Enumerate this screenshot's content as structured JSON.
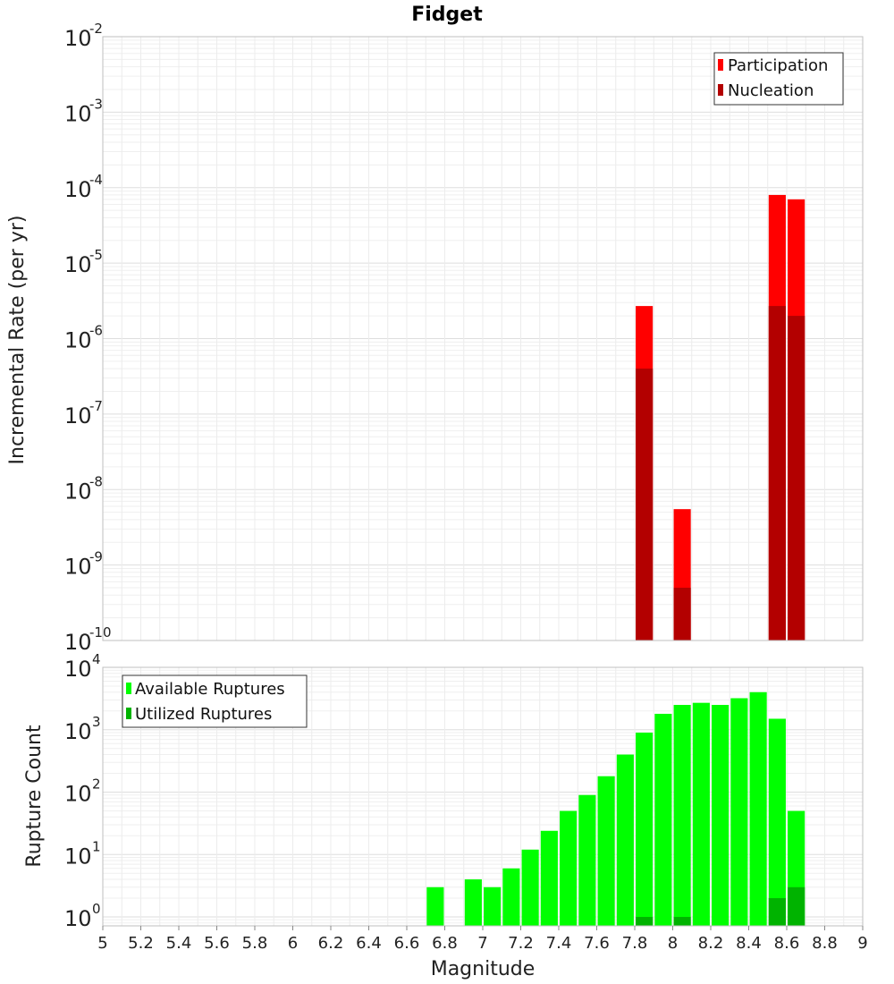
{
  "chart_data": [
    {
      "type": "bar",
      "title": "Fidget",
      "xlabel": "",
      "ylabel": "Incremental Rate (per yr)",
      "yscale": "log",
      "ylim": [
        1e-10,
        0.01
      ],
      "xlim": [
        5,
        9
      ],
      "y_ticks": [
        {
          "base": "10",
          "exp": "-2"
        },
        {
          "base": "10",
          "exp": "-3"
        },
        {
          "base": "10",
          "exp": "-4"
        },
        {
          "base": "10",
          "exp": "-5"
        },
        {
          "base": "10",
          "exp": "-6"
        },
        {
          "base": "10",
          "exp": "-7"
        },
        {
          "base": "10",
          "exp": "-8"
        },
        {
          "base": "10",
          "exp": "-9"
        },
        {
          "base": "10",
          "exp": "-10"
        }
      ],
      "grid": true,
      "legend_position": "top-right",
      "series": [
        {
          "name": "Participation",
          "color": "#ff0000",
          "points": [
            [
              7.85,
              2.7e-06
            ],
            [
              8.05,
              5.5e-09
            ],
            [
              8.55,
              8e-05
            ],
            [
              8.65,
              7e-05
            ]
          ]
        },
        {
          "name": "Nucleation",
          "color": "#b30000",
          "points": [
            [
              7.85,
              4e-07
            ],
            [
              8.05,
              5e-10
            ],
            [
              8.55,
              2.7e-06
            ],
            [
              8.65,
              2e-06
            ]
          ]
        }
      ]
    },
    {
      "type": "bar",
      "xlabel": "Magnitude",
      "ylabel": "Rupture Count",
      "yscale": "log",
      "ylim": [
        0.72,
        10000
      ],
      "xlim": [
        5,
        9
      ],
      "x_ticks": [
        "5",
        "5.2",
        "5.4",
        "5.6",
        "5.8",
        "6",
        "6.2",
        "6.4",
        "6.6",
        "6.8",
        "7",
        "7.2",
        "7.4",
        "7.6",
        "7.8",
        "8",
        "8.2",
        "8.4",
        "8.6",
        "8.8",
        "9"
      ],
      "y_ticks": [
        {
          "base": "10",
          "exp": "4",
          "value": 10000
        },
        {
          "base": "10",
          "exp": "3",
          "value": 1000
        },
        {
          "base": "10",
          "exp": "2",
          "value": 100
        },
        {
          "base": "10",
          "exp": "1",
          "value": 10
        },
        {
          "base": "10",
          "exp": "0",
          "value": 1
        }
      ],
      "grid": true,
      "legend_position": "top-left",
      "series": [
        {
          "name": "Available Ruptures",
          "color": "#00ff00",
          "points": [
            [
              6.75,
              3
            ],
            [
              6.95,
              4
            ],
            [
              7.05,
              3
            ],
            [
              7.15,
              6
            ],
            [
              7.25,
              12
            ],
            [
              7.35,
              24
            ],
            [
              7.45,
              50
            ],
            [
              7.55,
              90
            ],
            [
              7.65,
              180
            ],
            [
              7.75,
              400
            ],
            [
              7.85,
              900
            ],
            [
              7.95,
              1800
            ],
            [
              8.05,
              2500
            ],
            [
              8.15,
              2700
            ],
            [
              8.25,
              2500
            ],
            [
              8.35,
              3200
            ],
            [
              8.45,
              4000
            ],
            [
              8.55,
              1500
            ],
            [
              8.65,
              50
            ]
          ]
        },
        {
          "name": "Utilized Ruptures",
          "color": "#00b300",
          "points": [
            [
              7.85,
              1
            ],
            [
              8.05,
              1
            ],
            [
              8.55,
              2
            ],
            [
              8.65,
              3
            ]
          ]
        }
      ]
    }
  ]
}
